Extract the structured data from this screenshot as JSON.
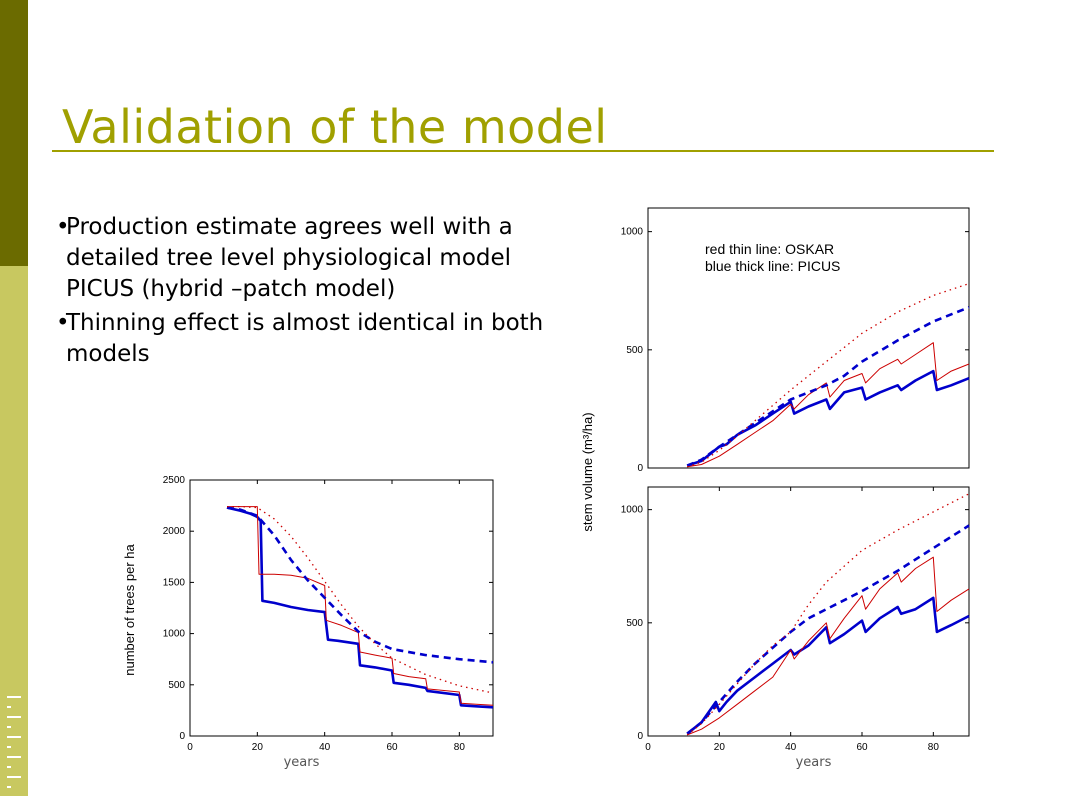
{
  "slide": {
    "title": "Validation of the model",
    "brand_letters": "I N S E A",
    "bullets": [
      {
        "bullet": "•",
        "text": "Production estimate agrees well with a detailed tree level physiological model PICUS (hybrid –patch model)"
      },
      {
        "bullet": "•",
        "text": "Thinning effect is almost identical in both models"
      }
    ]
  },
  "colors": {
    "olive_dark": "#6b6b00",
    "olive_light": "#c8c860",
    "title": "#a0a000",
    "oskar": "#cc0000",
    "picus": "#0000cc"
  },
  "chart_data": [
    {
      "type": "line",
      "xlabel": "years",
      "ylabel": "number of trees per ha",
      "xlim": [
        0,
        90
      ],
      "ylim": [
        0,
        2500
      ],
      "xticks": [
        "0",
        "20",
        "40",
        "60",
        "80"
      ],
      "yticks": [
        "0",
        "500",
        "1000",
        "1500",
        "2000",
        "2500"
      ],
      "series": [
        {
          "style": "picus-thick-solid",
          "x": [
            11,
            15,
            18,
            20,
            21,
            21.5,
            25,
            30,
            35,
            40,
            41,
            44,
            50,
            50.5,
            55,
            60,
            60.5,
            65,
            70,
            70.5,
            80,
            80.5,
            85,
            90
          ],
          "y": [
            2230,
            2200,
            2170,
            2140,
            2100,
            1320,
            1300,
            1260,
            1230,
            1210,
            940,
            930,
            900,
            690,
            670,
            640,
            520,
            500,
            470,
            440,
            400,
            300,
            290,
            280
          ]
        },
        {
          "style": "oskar-thin-solid",
          "x": [
            11,
            15,
            20,
            20.5,
            25,
            30,
            35,
            40,
            40.5,
            45,
            50,
            50.5,
            55,
            60,
            60.5,
            65,
            70,
            70.5,
            80,
            80.5,
            85,
            90
          ],
          "y": [
            2240,
            2240,
            2240,
            1580,
            1580,
            1570,
            1540,
            1470,
            1130,
            1080,
            1010,
            820,
            790,
            760,
            610,
            580,
            560,
            460,
            430,
            320,
            310,
            300
          ]
        },
        {
          "style": "picus-thick-dashed",
          "x": [
            11,
            15,
            20,
            25,
            30,
            35,
            40,
            45,
            50,
            55,
            60,
            70,
            80,
            90
          ],
          "y": [
            2230,
            2210,
            2150,
            1960,
            1720,
            1520,
            1350,
            1180,
            1020,
            920,
            850,
            790,
            750,
            720
          ]
        },
        {
          "style": "oskar-thin-dotted",
          "x": [
            11,
            15,
            20,
            25,
            30,
            35,
            40,
            45,
            50,
            55,
            60,
            70,
            80,
            90
          ],
          "y": [
            2240,
            2240,
            2230,
            2120,
            1950,
            1740,
            1510,
            1280,
            1070,
            900,
            760,
            600,
            490,
            420
          ]
        }
      ]
    },
    {
      "type": "line",
      "xlabel": "",
      "ylabel": "stem volume (m³/ha)",
      "xlim": [
        0,
        90
      ],
      "ylim": [
        0,
        1100
      ],
      "yticks": [
        "0",
        "500",
        "1000"
      ],
      "legend": [
        "red thin line: OSKAR",
        "blue thick line: PICUS"
      ],
      "series": [
        {
          "style": "picus-thick-solid",
          "x": [
            11,
            15,
            20,
            22,
            25,
            30,
            35,
            40,
            41,
            45,
            50,
            51,
            55,
            60,
            61,
            65,
            70,
            71,
            75,
            80,
            81,
            85,
            90
          ],
          "y": [
            10,
            30,
            90,
            100,
            140,
            180,
            230,
            280,
            230,
            260,
            290,
            250,
            320,
            340,
            290,
            320,
            350,
            330,
            370,
            410,
            330,
            350,
            380
          ]
        },
        {
          "style": "oskar-thin-solid",
          "x": [
            11,
            15,
            20,
            25,
            30,
            35,
            40,
            41,
            45,
            50,
            51,
            55,
            60,
            61,
            65,
            70,
            71,
            75,
            80,
            81,
            85,
            90
          ],
          "y": [
            5,
            15,
            50,
            100,
            150,
            200,
            270,
            250,
            310,
            360,
            300,
            370,
            400,
            360,
            420,
            460,
            440,
            480,
            530,
            370,
            410,
            440
          ]
        },
        {
          "style": "picus-thick-dashed",
          "x": [
            11,
            15,
            20,
            25,
            30,
            35,
            40,
            45,
            50,
            55,
            60,
            70,
            80,
            90
          ],
          "y": [
            10,
            35,
            90,
            140,
            190,
            240,
            290,
            320,
            350,
            390,
            450,
            540,
            620,
            680
          ]
        },
        {
          "style": "oskar-thin-dotted",
          "x": [
            11,
            15,
            20,
            25,
            30,
            35,
            40,
            45,
            50,
            55,
            60,
            70,
            80,
            90
          ],
          "y": [
            5,
            25,
            75,
            135,
            200,
            265,
            330,
            390,
            450,
            510,
            570,
            660,
            730,
            780
          ]
        }
      ]
    },
    {
      "type": "line",
      "xlabel": "years",
      "ylabel": "",
      "xlim": [
        0,
        90
      ],
      "ylim": [
        0,
        1100
      ],
      "xticks": [
        "0",
        "20",
        "40",
        "60",
        "80"
      ],
      "yticks": [
        "0",
        "500",
        "1000"
      ],
      "series": [
        {
          "style": "picus-thick-solid",
          "x": [
            11,
            15,
            19,
            20,
            22,
            25,
            30,
            35,
            40,
            41,
            45,
            50,
            51,
            55,
            60,
            61,
            65,
            70,
            71,
            75,
            80,
            81,
            85,
            90
          ],
          "y": [
            10,
            60,
            150,
            110,
            150,
            200,
            260,
            320,
            380,
            360,
            400,
            480,
            410,
            450,
            510,
            460,
            520,
            570,
            540,
            560,
            610,
            460,
            490,
            530
          ]
        },
        {
          "style": "oskar-thin-solid",
          "x": [
            11,
            15,
            20,
            25,
            30,
            35,
            40,
            41,
            45,
            50,
            51,
            55,
            60,
            61,
            65,
            70,
            71,
            75,
            80,
            81,
            85,
            90
          ],
          "y": [
            5,
            30,
            80,
            140,
            200,
            260,
            380,
            340,
            420,
            500,
            430,
            520,
            620,
            560,
            650,
            720,
            680,
            740,
            790,
            550,
            600,
            650
          ]
        },
        {
          "style": "picus-thick-dashed",
          "x": [
            11,
            15,
            20,
            25,
            30,
            35,
            40,
            45,
            50,
            55,
            60,
            70,
            80,
            90
          ],
          "y": [
            10,
            60,
            150,
            240,
            320,
            390,
            460,
            520,
            560,
            600,
            640,
            730,
            830,
            930
          ]
        },
        {
          "style": "oskar-thin-dotted",
          "x": [
            11,
            15,
            20,
            25,
            30,
            35,
            40,
            45,
            50,
            55,
            60,
            70,
            80,
            90
          ],
          "y": [
            5,
            55,
            140,
            230,
            320,
            400,
            460,
            580,
            680,
            750,
            820,
            910,
            990,
            1070
          ]
        }
      ]
    }
  ]
}
